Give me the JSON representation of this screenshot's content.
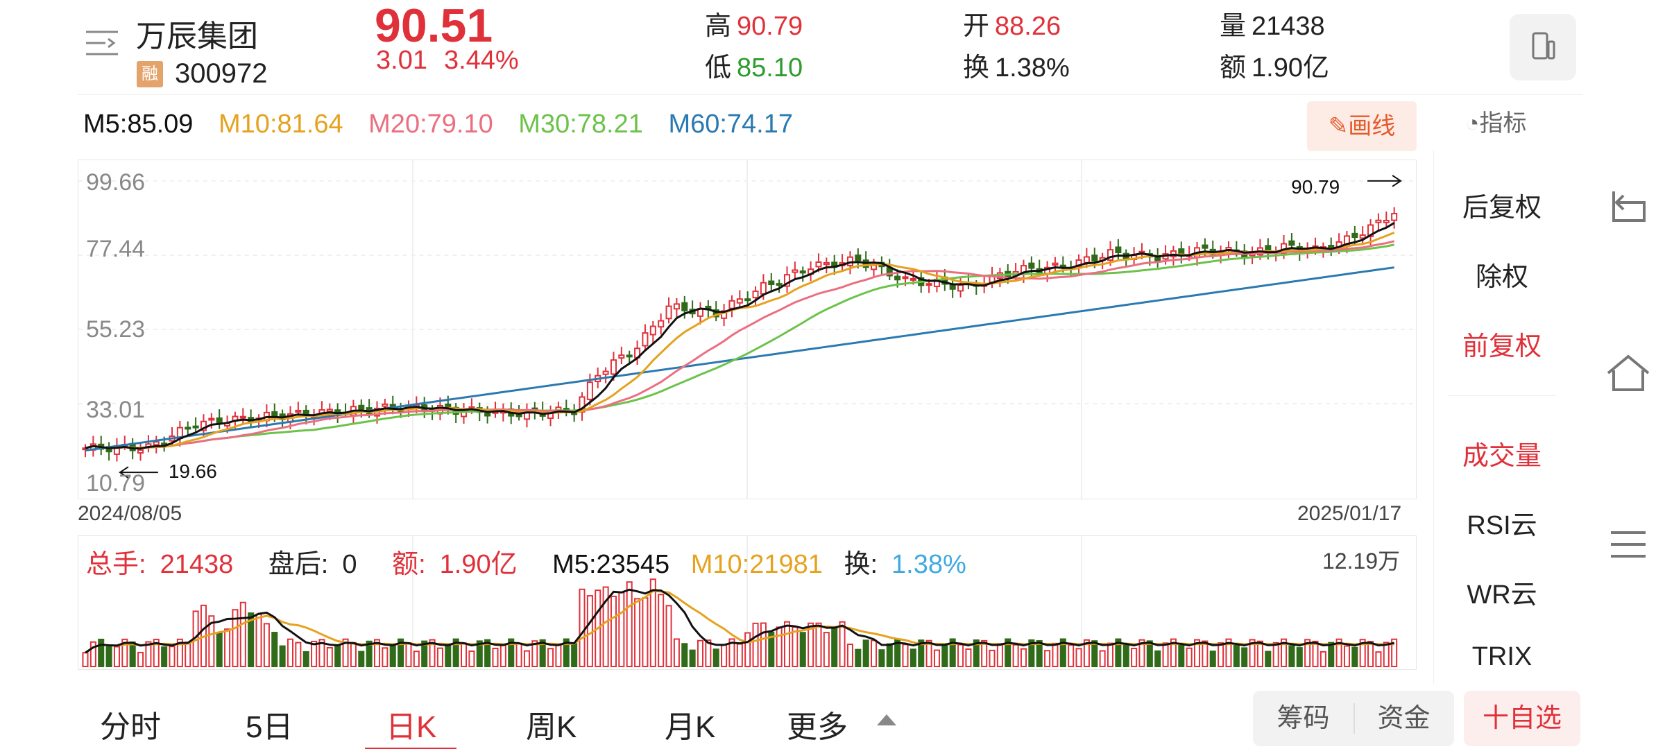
{
  "header": {
    "name": "万辰集团",
    "badge": "融",
    "code": "300972",
    "price": "90.51",
    "change": "3.01",
    "change_pct": "3.44%",
    "high_label": "高",
    "high": "90.79",
    "low_label": "低",
    "low": "85.10",
    "open_label": "开",
    "open": "88.26",
    "turnover_label": "换",
    "turnover": "1.38%",
    "volume_label": "量",
    "volume": "21438",
    "amount_label": "额",
    "amount": "1.90亿"
  },
  "ma_legend": {
    "m5": "M5:85.09",
    "m10": "M10:81.64",
    "m20": "M20:79.10",
    "m30": "M30:78.21",
    "m60": "M60:74.17"
  },
  "colors": {
    "up": "#e0313a",
    "down": "#2f6b19",
    "m5": "#111111",
    "m10": "#e6a21e",
    "m20": "#ea6f80",
    "m30": "#6cc24a",
    "m60": "#2a79b0"
  },
  "toolbar": {
    "draw_label": "画线",
    "indicator_label": "指标"
  },
  "chart": {
    "y_ticks": [
      "99.66",
      "77.44",
      "55.23",
      "33.01",
      "10.79"
    ],
    "start_date": "2024/08/05",
    "end_date": "2025/01/17",
    "max_label": "90.79",
    "min_label": "19.66"
  },
  "volume": {
    "total_label": "总手:",
    "total": "21438",
    "after_label": "盘后:",
    "after": "0",
    "amount_label": "额:",
    "amount": "1.90亿",
    "m5": "M5:23545",
    "m10": "M10:21981",
    "turnover_label": "换:",
    "turnover": "1.38%",
    "max": "12.19万"
  },
  "side_menu": {
    "items": [
      "后复权",
      "除权",
      "前复权",
      "成交量",
      "RSI云",
      "WR云",
      "TRIX"
    ],
    "active": [
      "前复权",
      "成交量"
    ]
  },
  "tabs": [
    "分时",
    "5日",
    "日K",
    "周K",
    "月K",
    "更多"
  ],
  "active_tab": "日K",
  "chips": [
    "筹码",
    "资金"
  ],
  "watchlist_label": "十自选",
  "icons": {
    "menu": "menu-lines-icon",
    "device": "device-switch-icon",
    "draw": "pencil-icon",
    "indicator": "gauge-icon",
    "back": "back-arrow-icon",
    "home": "home-icon",
    "recents": "hamburger-icon"
  }
}
